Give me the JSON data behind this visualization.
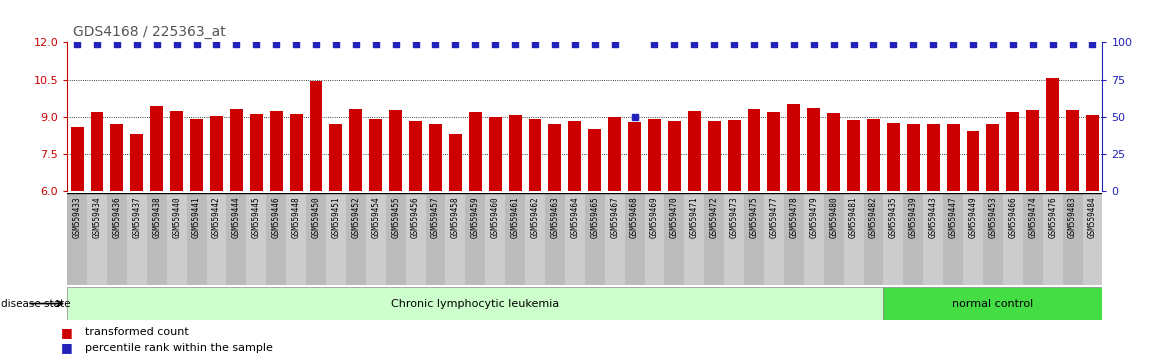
{
  "title": "GDS4168 / 225363_at",
  "categories": [
    "GSM559433",
    "GSM559434",
    "GSM559436",
    "GSM559437",
    "GSM559438",
    "GSM559440",
    "GSM559441",
    "GSM559442",
    "GSM559444",
    "GSM559445",
    "GSM559446",
    "GSM559448",
    "GSM559450",
    "GSM559451",
    "GSM559452",
    "GSM559454",
    "GSM559455",
    "GSM559456",
    "GSM559457",
    "GSM559458",
    "GSM559459",
    "GSM559460",
    "GSM559461",
    "GSM559462",
    "GSM559463",
    "GSM559464",
    "GSM559465",
    "GSM559467",
    "GSM559468",
    "GSM559469",
    "GSM559470",
    "GSM559471",
    "GSM559472",
    "GSM559473",
    "GSM559475",
    "GSM559477",
    "GSM559478",
    "GSM559479",
    "GSM559480",
    "GSM559481",
    "GSM559482",
    "GSM559435",
    "GSM559439",
    "GSM559443",
    "GSM559447",
    "GSM559449",
    "GSM559453",
    "GSM559466",
    "GSM559474",
    "GSM559476",
    "GSM559483",
    "GSM559484"
  ],
  "bar_values": [
    8.6,
    9.2,
    8.72,
    8.3,
    9.42,
    9.22,
    8.9,
    9.05,
    9.3,
    9.12,
    9.25,
    9.1,
    10.45,
    8.72,
    9.3,
    8.9,
    9.28,
    8.82,
    8.72,
    8.3,
    9.18,
    9.0,
    9.08,
    8.9,
    8.72,
    8.82,
    8.52,
    8.98,
    8.8,
    8.9,
    8.82,
    9.22,
    8.85,
    8.88,
    9.3,
    9.18,
    9.5,
    9.35,
    9.15,
    8.88,
    8.9,
    8.75,
    8.72,
    8.72,
    8.72,
    8.42,
    8.72,
    9.2,
    9.28,
    10.58,
    9.28,
    9.08
  ],
  "percentile_values": [
    99,
    99,
    99,
    99,
    99,
    99,
    99,
    99,
    99,
    99,
    99,
    99,
    99,
    99,
    99,
    99,
    99,
    99,
    99,
    99,
    99,
    99,
    99,
    99,
    99,
    99,
    99,
    99,
    50,
    99,
    99,
    99,
    99,
    99,
    99,
    99,
    99,
    99,
    99,
    99,
    99,
    99,
    99,
    99,
    99,
    99,
    99,
    99,
    99,
    99,
    99,
    99
  ],
  "cll_count": 41,
  "nc_count": 11,
  "cll_label": "Chronic lymphocytic leukemia",
  "nc_label": "normal control",
  "disease_state_label": "disease state",
  "ylim_left": [
    6,
    12
  ],
  "ylim_right": [
    0,
    100
  ],
  "yticks_left": [
    6,
    7.5,
    9,
    10.5,
    12
  ],
  "yticks_right": [
    0,
    25,
    50,
    75,
    100
  ],
  "bar_color": "#cc0000",
  "dot_color": "#2222bb",
  "cll_color": "#ccffcc",
  "nc_color": "#44dd44",
  "bg_color": "#ffffff",
  "legend_bar_label": "transformed count",
  "legend_dot_label": "percentile rank within the sample",
  "title_color": "#555555"
}
